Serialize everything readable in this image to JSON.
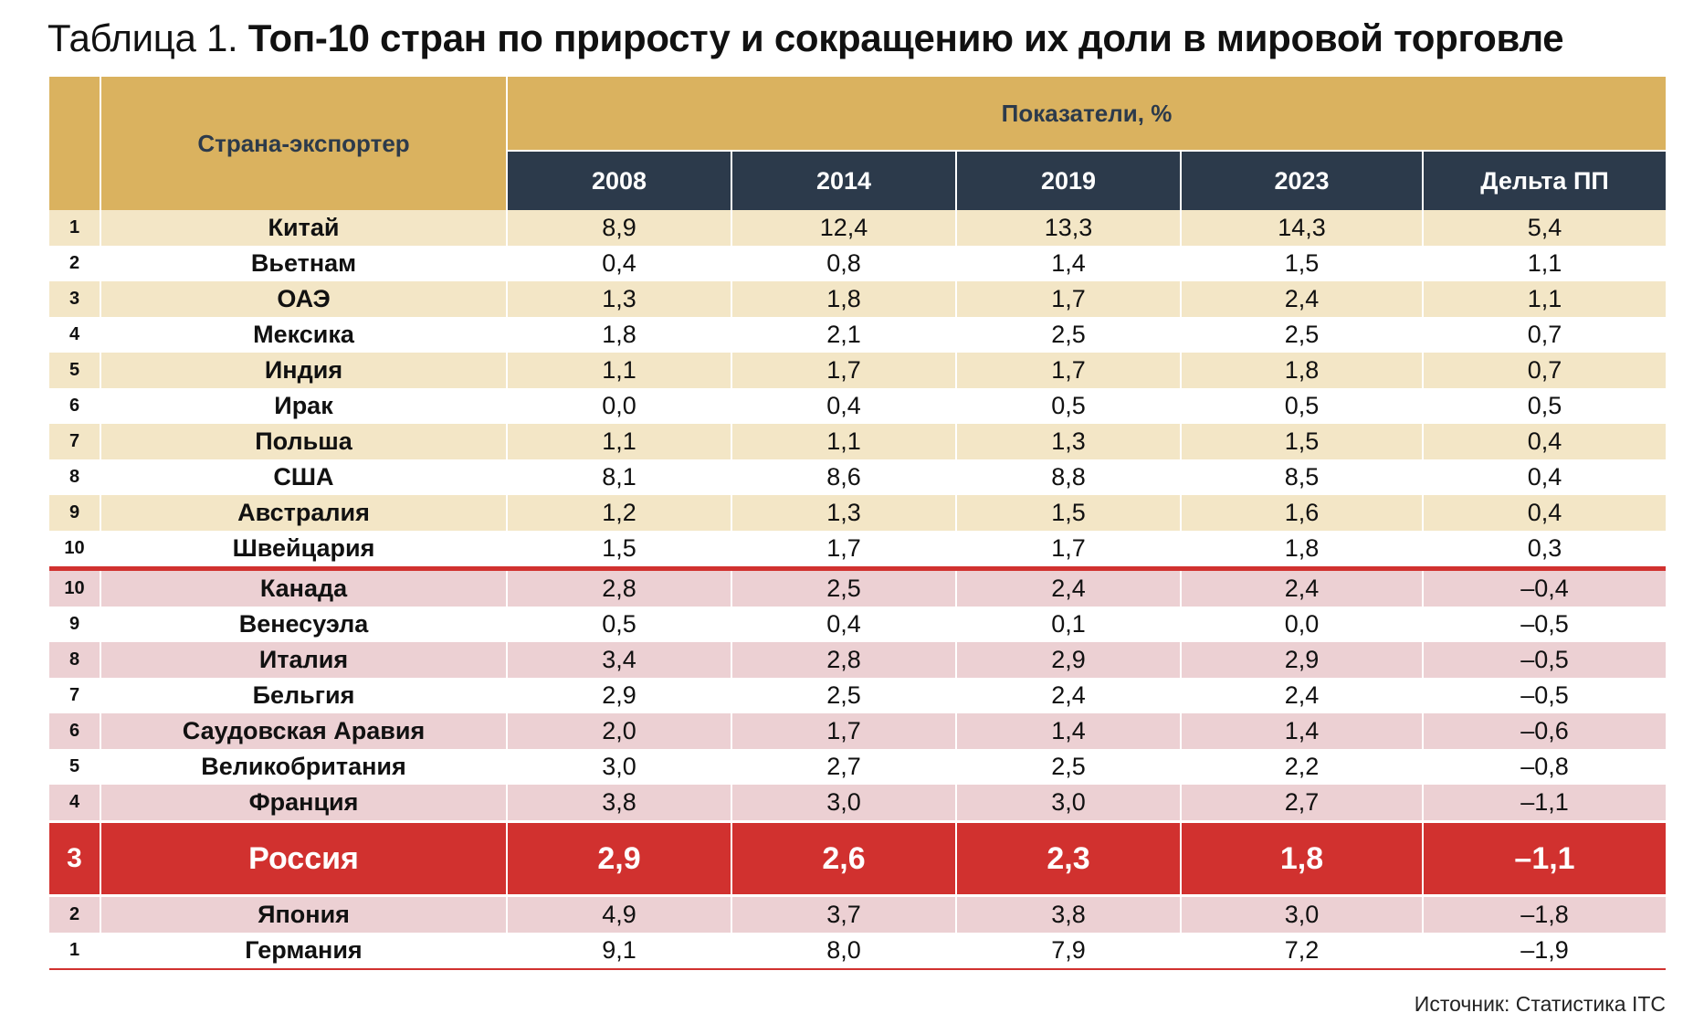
{
  "title": {
    "prefix": "Таблица 1.",
    "main": "Топ-10 стран по приросту и сокращению их доли в мировой торговле"
  },
  "header": {
    "country_col": "Страна-экспортер",
    "group": "Показатели, %",
    "columns": [
      "2008",
      "2014",
      "2019",
      "2023",
      "Дельта ПП"
    ]
  },
  "rows": [
    {
      "idx": "1",
      "country": "Китай",
      "values": [
        "8,9",
        "12,4",
        "13,3",
        "14,3",
        "5,4"
      ],
      "group": "gain"
    },
    {
      "idx": "2",
      "country": "Вьетнам",
      "values": [
        "0,4",
        "0,8",
        "1,4",
        "1,5",
        "1,1"
      ],
      "group": "gain"
    },
    {
      "idx": "3",
      "country": "ОАЭ",
      "values": [
        "1,3",
        "1,8",
        "1,7",
        "2,4",
        "1,1"
      ],
      "group": "gain"
    },
    {
      "idx": "4",
      "country": "Мексика",
      "values": [
        "1,8",
        "2,1",
        "2,5",
        "2,5",
        "0,7"
      ],
      "group": "gain"
    },
    {
      "idx": "5",
      "country": "Индия",
      "values": [
        "1,1",
        "1,7",
        "1,7",
        "1,8",
        "0,7"
      ],
      "group": "gain"
    },
    {
      "idx": "6",
      "country": "Ирак",
      "values": [
        "0,0",
        "0,4",
        "0,5",
        "0,5",
        "0,5"
      ],
      "group": "gain"
    },
    {
      "idx": "7",
      "country": "Польша",
      "values": [
        "1,1",
        "1,1",
        "1,3",
        "1,5",
        "0,4"
      ],
      "group": "gain"
    },
    {
      "idx": "8",
      "country": "США",
      "values": [
        "8,1",
        "8,6",
        "8,8",
        "8,5",
        "0,4"
      ],
      "group": "gain"
    },
    {
      "idx": "9",
      "country": "Австралия",
      "values": [
        "1,2",
        "1,3",
        "1,5",
        "1,6",
        "0,4"
      ],
      "group": "gain"
    },
    {
      "idx": "10",
      "country": "Швейцария",
      "values": [
        "1,5",
        "1,7",
        "1,7",
        "1,8",
        "0,3"
      ],
      "group": "gain"
    },
    {
      "idx": "10",
      "country": "Канада",
      "values": [
        "2,8",
        "2,5",
        "2,4",
        "2,4",
        "–0,4"
      ],
      "group": "loss"
    },
    {
      "idx": "9",
      "country": "Венесуэла",
      "values": [
        "0,5",
        "0,4",
        "0,1",
        "0,0",
        "–0,5"
      ],
      "group": "loss"
    },
    {
      "idx": "8",
      "country": "Италия",
      "values": [
        "3,4",
        "2,8",
        "2,9",
        "2,9",
        "–0,5"
      ],
      "group": "loss"
    },
    {
      "idx": "7",
      "country": "Бельгия",
      "values": [
        "2,9",
        "2,5",
        "2,4",
        "2,4",
        "–0,5"
      ],
      "group": "loss"
    },
    {
      "idx": "6",
      "country": "Саудовская Аравия",
      "values": [
        "2,0",
        "1,7",
        "1,4",
        "1,4",
        "–0,6"
      ],
      "group": "loss"
    },
    {
      "idx": "5",
      "country": "Великобритания",
      "values": [
        "3,0",
        "2,7",
        "2,5",
        "2,2",
        "–0,8"
      ],
      "group": "loss"
    },
    {
      "idx": "4",
      "country": "Франция",
      "values": [
        "3,8",
        "3,0",
        "3,0",
        "2,7",
        "–1,1"
      ],
      "group": "loss"
    },
    {
      "idx": "3",
      "country": "Россия",
      "values": [
        "2,9",
        "2,6",
        "2,3",
        "1,8",
        "–1,1"
      ],
      "group": "loss",
      "highlight": true
    },
    {
      "idx": "2",
      "country": "Япония",
      "values": [
        "4,9",
        "3,7",
        "3,8",
        "3,0",
        "–1,8"
      ],
      "group": "loss"
    },
    {
      "idx": "1",
      "country": "Германия",
      "values": [
        "9,1",
        "8,0",
        "7,9",
        "7,2",
        "–1,9"
      ],
      "group": "loss"
    }
  ],
  "source": "Источник: Статистика ITC",
  "colors": {
    "gold": "#dab25f",
    "navy": "#2c3a4b",
    "gain_stripe": "#f3e6c6",
    "loss_stripe": "#ecd0d3",
    "accent_red": "#d1312f"
  }
}
